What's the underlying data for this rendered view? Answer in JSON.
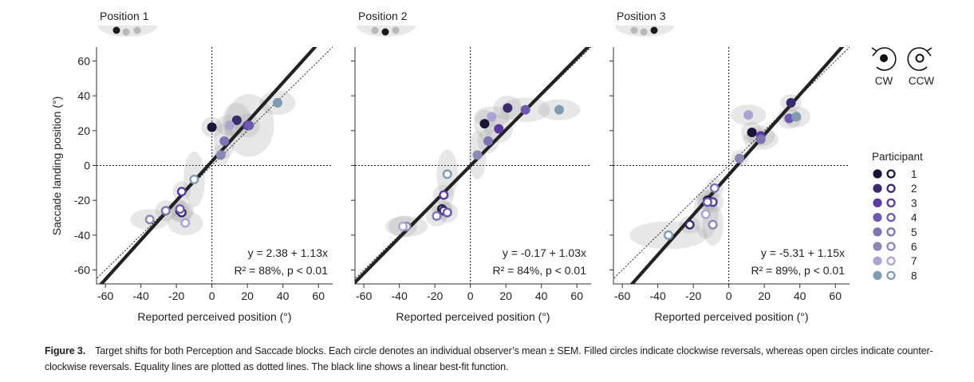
{
  "figure": {
    "label": "Figure 3.",
    "caption": "Target shifts for both Perception and Saccade blocks. Each circle denotes an individual observer’s mean ± SEM. Filled circles indicate clockwise reversals, whereas open circles indicate counter-clockwise reversals. Equality lines are plotted as dotted lines. The black line shows a linear best-fit function."
  },
  "legend": {
    "direction_cw": "CW",
    "direction_ccw": "CCW",
    "participant_title": "Participant",
    "participants": [
      "1",
      "2",
      "3",
      "4",
      "5",
      "6",
      "7",
      "8"
    ],
    "colors": [
      "#1c1438",
      "#3a2a6e",
      "#5a3aa0",
      "#6e58b2",
      "#7e74b4",
      "#8a88b4",
      "#a9a4d2",
      "#7f9cb2"
    ]
  },
  "chart_data": [
    {
      "type": "scatter",
      "title": "Position 1",
      "xlabel": "Reported perceived position (°)",
      "ylabel": "Saccade landing position (°)",
      "xlim": [
        -65,
        68
      ],
      "ylim": [
        -68,
        68
      ],
      "xticks": [
        "-60",
        "-40",
        "-20",
        "0",
        "20",
        "40",
        "60"
      ],
      "yticks": [
        "60",
        "40",
        "20",
        "0",
        "-20",
        "-40",
        "-60"
      ],
      "fit": {
        "intercept": 2.38,
        "slope": 1.13
      },
      "equation": "y = 2.38 + 1.13x",
      "stats": "R² = 88%, p < 0.01",
      "cw": [
        {
          "participant": 1,
          "x": 0,
          "y": 22,
          "sx": 6,
          "sy": 6
        },
        {
          "participant": 2,
          "x": 14,
          "y": 26,
          "sx": 8,
          "sy": 10
        },
        {
          "participant": 3,
          "x": 20,
          "y": 23,
          "sx": 7,
          "sy": 7
        },
        {
          "participant": 4,
          "x": 21,
          "y": 23,
          "sx": 14,
          "sy": 18
        },
        {
          "participant": 5,
          "x": 7,
          "y": 14,
          "sx": 6,
          "sy": 10
        },
        {
          "participant": 6,
          "x": 5,
          "y": 6,
          "sx": 5,
          "sy": 6
        },
        {
          "participant": 7,
          "x": 10,
          "y": 23,
          "sx": 8,
          "sy": 6
        },
        {
          "participant": 8,
          "x": 37,
          "y": 36,
          "sx": 10,
          "sy": 7
        }
      ],
      "ccw": [
        {
          "participant": 1,
          "x": -18,
          "y": -26,
          "sx": 8,
          "sy": 6
        },
        {
          "participant": 2,
          "x": -17,
          "y": -27,
          "sx": 6,
          "sy": 6
        },
        {
          "participant": 3,
          "x": -17,
          "y": -15,
          "sx": 5,
          "sy": 6
        },
        {
          "participant": 4,
          "x": -18,
          "y": -25,
          "sx": 5,
          "sy": 5
        },
        {
          "participant": 5,
          "x": -26,
          "y": -26,
          "sx": 6,
          "sy": 6
        },
        {
          "participant": 6,
          "x": -35,
          "y": -31,
          "sx": 11,
          "sy": 6
        },
        {
          "participant": 7,
          "x": -15,
          "y": -33,
          "sx": 10,
          "sy": 7
        },
        {
          "participant": 8,
          "x": -10,
          "y": -8,
          "sx": 6,
          "sy": 16
        }
      ]
    },
    {
      "type": "scatter",
      "title": "Position 2",
      "xlabel": "Reported perceived position (°)",
      "ylabel": "",
      "xlim": [
        -65,
        68
      ],
      "ylim": [
        -68,
        68
      ],
      "xticks": [
        "-60",
        "-40",
        "-20",
        "0",
        "20",
        "40",
        "60"
      ],
      "yticks": [],
      "fit": {
        "intercept": -0.17,
        "slope": 1.03
      },
      "equation": "y = -0.17 + 1.03x",
      "stats": "R² = 84%, p < 0.01",
      "cw": [
        {
          "participant": 1,
          "x": 8,
          "y": 24,
          "sx": 6,
          "sy": 8
        },
        {
          "participant": 2,
          "x": 21,
          "y": 33,
          "sx": 8,
          "sy": 7
        },
        {
          "participant": 3,
          "x": 16,
          "y": 21,
          "sx": 8,
          "sy": 8
        },
        {
          "participant": 4,
          "x": 31,
          "y": 32,
          "sx": 14,
          "sy": 7
        },
        {
          "participant": 5,
          "x": 10,
          "y": 14,
          "sx": 6,
          "sy": 7
        },
        {
          "participant": 6,
          "x": 4,
          "y": 6,
          "sx": 5,
          "sy": 14
        },
        {
          "participant": 7,
          "x": 12,
          "y": 28,
          "sx": 10,
          "sy": 6
        },
        {
          "participant": 8,
          "x": 50,
          "y": 32,
          "sx": 12,
          "sy": 6
        }
      ],
      "ccw": [
        {
          "participant": 1,
          "x": -16,
          "y": -25,
          "sx": 6,
          "sy": 5
        },
        {
          "participant": 2,
          "x": -15,
          "y": -26,
          "sx": 5,
          "sy": 5
        },
        {
          "participant": 3,
          "x": -15,
          "y": -17,
          "sx": 6,
          "sy": 6
        },
        {
          "participant": 4,
          "x": -13,
          "y": -27,
          "sx": 6,
          "sy": 6
        },
        {
          "participant": 5,
          "x": -19,
          "y": -29,
          "sx": 6,
          "sy": 6
        },
        {
          "participant": 6,
          "x": -36,
          "y": -35,
          "sx": 12,
          "sy": 6
        },
        {
          "participant": 7,
          "x": -38,
          "y": -35,
          "sx": 8,
          "sy": 6
        },
        {
          "participant": 8,
          "x": -13,
          "y": -5,
          "sx": 6,
          "sy": 14
        }
      ]
    },
    {
      "type": "scatter",
      "title": "Position 3",
      "xlabel": "Reported perceived position (°)",
      "ylabel": "",
      "xlim": [
        -65,
        68
      ],
      "ylim": [
        -68,
        68
      ],
      "xticks": [
        "-60",
        "-40",
        "-20",
        "0",
        "20",
        "40",
        "60"
      ],
      "yticks": [],
      "fit": {
        "intercept": -5.31,
        "slope": 1.15
      },
      "equation": "y = -5.31 + 1.15x",
      "stats": "R² = 89%, p < 0.01",
      "cw": [
        {
          "participant": 1,
          "x": 13,
          "y": 19,
          "sx": 6,
          "sy": 6
        },
        {
          "participant": 2,
          "x": 35,
          "y": 36,
          "sx": 6,
          "sy": 5
        },
        {
          "participant": 3,
          "x": 18,
          "y": 17,
          "sx": 8,
          "sy": 6
        },
        {
          "participant": 4,
          "x": 34,
          "y": 27,
          "sx": 7,
          "sy": 6
        },
        {
          "participant": 5,
          "x": 18,
          "y": 15,
          "sx": 10,
          "sy": 6
        },
        {
          "participant": 6,
          "x": 6,
          "y": 4,
          "sx": 5,
          "sy": 5
        },
        {
          "participant": 7,
          "x": 11,
          "y": 29,
          "sx": 10,
          "sy": 6
        },
        {
          "participant": 8,
          "x": 38,
          "y": 28,
          "sx": 8,
          "sy": 6
        }
      ],
      "ccw": [
        {
          "participant": 1,
          "x": -12,
          "y": -20,
          "sx": 6,
          "sy": 6
        },
        {
          "participant": 2,
          "x": -22,
          "y": -34,
          "sx": 6,
          "sy": 5
        },
        {
          "participant": 3,
          "x": -9,
          "y": -21,
          "sx": 6,
          "sy": 6
        },
        {
          "participant": 4,
          "x": -12,
          "y": -21,
          "sx": 5,
          "sy": 5
        },
        {
          "participant": 5,
          "x": -8,
          "y": -13,
          "sx": 5,
          "sy": 6
        },
        {
          "participant": 6,
          "x": -9,
          "y": -34,
          "sx": 6,
          "sy": 12
        },
        {
          "participant": 7,
          "x": -13,
          "y": -28,
          "sx": 7,
          "sy": 14
        },
        {
          "participant": 8,
          "x": -34,
          "y": -40,
          "sx": 22,
          "sy": 8
        }
      ]
    }
  ]
}
